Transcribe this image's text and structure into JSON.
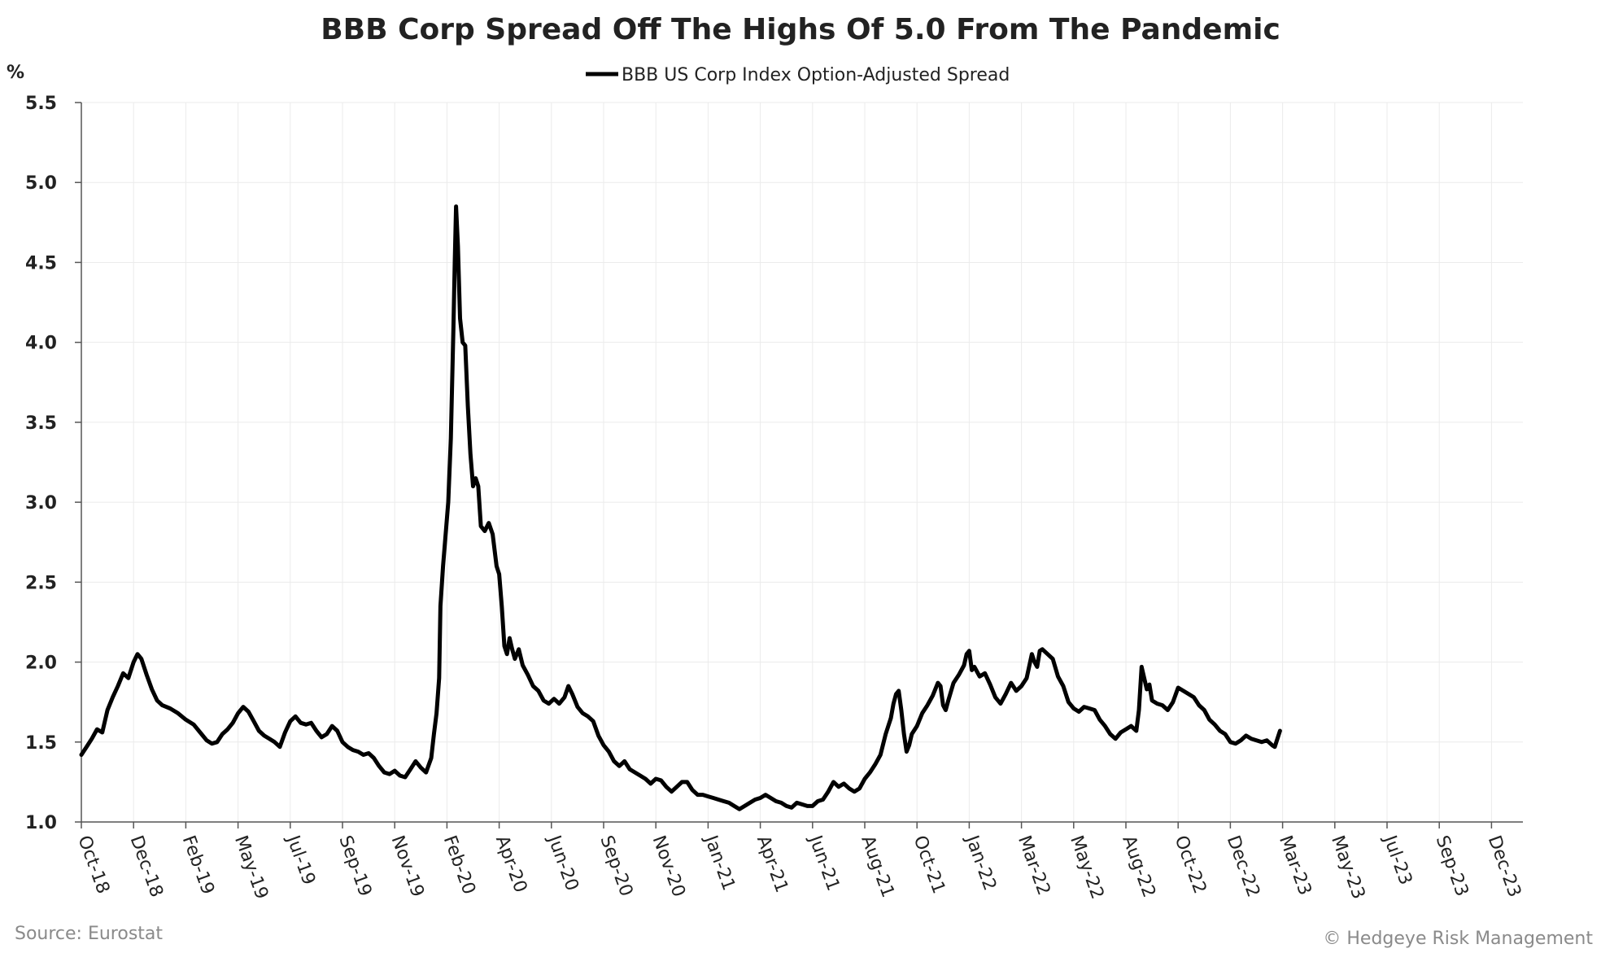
{
  "chart_data": {
    "type": "line",
    "title": "BBB Corp Spread Off The Highs Of 5.0 From The Pandemic",
    "ylabel": "%",
    "xlabel": "",
    "ylim": [
      1.0,
      5.5
    ],
    "yticks": [
      "1.0",
      "1.5",
      "2.0",
      "2.5",
      "3.0",
      "3.5",
      "4.0",
      "4.5",
      "5.0",
      "5.5"
    ],
    "ytick_values": [
      1.0,
      1.5,
      2.0,
      2.5,
      3.0,
      3.5,
      4.0,
      4.5,
      5.0,
      5.5
    ],
    "xticks": [
      "Oct-18",
      "Dec-18",
      "Feb-19",
      "May-19",
      "Jul-19",
      "Sep-19",
      "Nov-19",
      "Feb-20",
      "Apr-20",
      "Jun-20",
      "Sep-20",
      "Nov-20",
      "Jan-21",
      "Apr-21",
      "Jun-21",
      "Aug-21",
      "Oct-21",
      "Jan-22",
      "Mar-22",
      "May-22",
      "Aug-22",
      "Oct-22",
      "Dec-22",
      "Mar-23",
      "May-23",
      "Jul-23",
      "Sep-23",
      "Dec-23"
    ],
    "legend": {
      "position": "top-center",
      "entries": [
        "BBB US Corp Index Option-Adjusted Spread"
      ]
    },
    "grid": true,
    "series": [
      {
        "name": "BBB US Corp Index Option-Adjusted Spread",
        "color": "#000000",
        "points": [
          [
            0.0,
            1.42
          ],
          [
            0.2,
            1.47
          ],
          [
            0.4,
            1.52
          ],
          [
            0.6,
            1.58
          ],
          [
            0.8,
            1.56
          ],
          [
            1.0,
            1.7
          ],
          [
            1.2,
            1.78
          ],
          [
            1.4,
            1.85
          ],
          [
            1.6,
            1.93
          ],
          [
            1.8,
            1.9
          ],
          [
            2.0,
            2.0
          ],
          [
            2.15,
            2.05
          ],
          [
            2.3,
            2.02
          ],
          [
            2.5,
            1.92
          ],
          [
            2.7,
            1.83
          ],
          [
            2.9,
            1.76
          ],
          [
            3.1,
            1.73
          ],
          [
            3.4,
            1.71
          ],
          [
            3.7,
            1.68
          ],
          [
            4.0,
            1.64
          ],
          [
            4.3,
            1.61
          ],
          [
            4.6,
            1.55
          ],
          [
            4.8,
            1.51
          ],
          [
            5.0,
            1.49
          ],
          [
            5.2,
            1.5
          ],
          [
            5.4,
            1.55
          ],
          [
            5.6,
            1.58
          ],
          [
            5.8,
            1.62
          ],
          [
            6.0,
            1.68
          ],
          [
            6.2,
            1.72
          ],
          [
            6.4,
            1.69
          ],
          [
            6.6,
            1.63
          ],
          [
            6.8,
            1.57
          ],
          [
            7.0,
            1.54
          ],
          [
            7.2,
            1.52
          ],
          [
            7.4,
            1.5
          ],
          [
            7.6,
            1.47
          ],
          [
            7.8,
            1.56
          ],
          [
            8.0,
            1.63
          ],
          [
            8.2,
            1.66
          ],
          [
            8.4,
            1.62
          ],
          [
            8.6,
            1.61
          ],
          [
            8.8,
            1.62
          ],
          [
            9.0,
            1.57
          ],
          [
            9.2,
            1.53
          ],
          [
            9.4,
            1.55
          ],
          [
            9.6,
            1.6
          ],
          [
            9.8,
            1.57
          ],
          [
            10.0,
            1.5
          ],
          [
            10.2,
            1.47
          ],
          [
            10.4,
            1.45
          ],
          [
            10.6,
            1.44
          ],
          [
            10.8,
            1.42
          ],
          [
            11.0,
            1.43
          ],
          [
            11.2,
            1.4
          ],
          [
            11.4,
            1.35
          ],
          [
            11.6,
            1.31
          ],
          [
            11.8,
            1.3
          ],
          [
            12.0,
            1.32
          ],
          [
            12.2,
            1.29
          ],
          [
            12.4,
            1.28
          ],
          [
            12.6,
            1.33
          ],
          [
            12.8,
            1.38
          ],
          [
            13.0,
            1.34
          ],
          [
            13.2,
            1.31
          ],
          [
            13.4,
            1.4
          ],
          [
            13.5,
            1.55
          ],
          [
            13.6,
            1.68
          ],
          [
            13.7,
            1.9
          ],
          [
            13.75,
            2.35
          ],
          [
            13.85,
            2.6
          ],
          [
            13.95,
            2.8
          ],
          [
            14.05,
            3.0
          ],
          [
            14.15,
            3.4
          ],
          [
            14.25,
            4.1
          ],
          [
            14.3,
            4.5
          ],
          [
            14.35,
            4.85
          ],
          [
            14.42,
            4.6
          ],
          [
            14.5,
            4.15
          ],
          [
            14.6,
            4.0
          ],
          [
            14.7,
            3.98
          ],
          [
            14.8,
            3.6
          ],
          [
            14.9,
            3.3
          ],
          [
            15.0,
            3.1
          ],
          [
            15.1,
            3.15
          ],
          [
            15.2,
            3.1
          ],
          [
            15.3,
            2.85
          ],
          [
            15.45,
            2.82
          ],
          [
            15.6,
            2.87
          ],
          [
            15.75,
            2.8
          ],
          [
            15.9,
            2.6
          ],
          [
            16.0,
            2.55
          ],
          [
            16.1,
            2.35
          ],
          [
            16.2,
            2.1
          ],
          [
            16.3,
            2.05
          ],
          [
            16.4,
            2.15
          ],
          [
            16.5,
            2.08
          ],
          [
            16.6,
            2.02
          ],
          [
            16.75,
            2.08
          ],
          [
            16.9,
            1.98
          ],
          [
            17.1,
            1.92
          ],
          [
            17.3,
            1.85
          ],
          [
            17.5,
            1.82
          ],
          [
            17.7,
            1.76
          ],
          [
            17.9,
            1.74
          ],
          [
            18.1,
            1.77
          ],
          [
            18.3,
            1.74
          ],
          [
            18.5,
            1.78
          ],
          [
            18.65,
            1.85
          ],
          [
            18.8,
            1.8
          ],
          [
            19.0,
            1.72
          ],
          [
            19.2,
            1.68
          ],
          [
            19.4,
            1.66
          ],
          [
            19.6,
            1.63
          ],
          [
            19.8,
            1.54
          ],
          [
            20.0,
            1.48
          ],
          [
            20.2,
            1.44
          ],
          [
            20.4,
            1.38
          ],
          [
            20.6,
            1.35
          ],
          [
            20.8,
            1.38
          ],
          [
            21.0,
            1.33
          ],
          [
            21.2,
            1.31
          ],
          [
            21.4,
            1.29
          ],
          [
            21.6,
            1.27
          ],
          [
            21.8,
            1.24
          ],
          [
            22.0,
            1.27
          ],
          [
            22.2,
            1.26
          ],
          [
            22.4,
            1.22
          ],
          [
            22.6,
            1.19
          ],
          [
            22.8,
            1.22
          ],
          [
            23.0,
            1.25
          ],
          [
            23.2,
            1.25
          ],
          [
            23.4,
            1.2
          ],
          [
            23.6,
            1.17
          ],
          [
            23.8,
            1.17
          ],
          [
            24.0,
            1.16
          ],
          [
            24.2,
            1.15
          ],
          [
            24.4,
            1.14
          ],
          [
            24.6,
            1.13
          ],
          [
            24.8,
            1.12
          ],
          [
            25.0,
            1.1
          ],
          [
            25.2,
            1.08
          ],
          [
            25.4,
            1.1
          ],
          [
            25.6,
            1.12
          ],
          [
            25.8,
            1.14
          ],
          [
            26.0,
            1.15
          ],
          [
            26.2,
            1.17
          ],
          [
            26.4,
            1.15
          ],
          [
            26.6,
            1.13
          ],
          [
            26.8,
            1.12
          ],
          [
            27.0,
            1.1
          ],
          [
            27.2,
            1.09
          ],
          [
            27.4,
            1.12
          ],
          [
            27.6,
            1.11
          ],
          [
            27.8,
            1.1
          ],
          [
            28.0,
            1.1
          ],
          [
            28.2,
            1.13
          ],
          [
            28.4,
            1.14
          ],
          [
            28.6,
            1.19
          ],
          [
            28.8,
            1.25
          ],
          [
            29.0,
            1.22
          ],
          [
            29.2,
            1.24
          ],
          [
            29.4,
            1.21
          ],
          [
            29.6,
            1.19
          ],
          [
            29.8,
            1.21
          ],
          [
            30.0,
            1.27
          ],
          [
            30.2,
            1.31
          ],
          [
            30.4,
            1.36
          ],
          [
            30.6,
            1.42
          ],
          [
            30.8,
            1.55
          ],
          [
            31.0,
            1.65
          ],
          [
            31.1,
            1.74
          ],
          [
            31.2,
            1.8
          ],
          [
            31.3,
            1.82
          ],
          [
            31.4,
            1.7
          ],
          [
            31.5,
            1.55
          ],
          [
            31.6,
            1.44
          ],
          [
            31.7,
            1.48
          ],
          [
            31.8,
            1.55
          ],
          [
            32.0,
            1.6
          ],
          [
            32.2,
            1.68
          ],
          [
            32.4,
            1.73
          ],
          [
            32.6,
            1.79
          ],
          [
            32.8,
            1.87
          ],
          [
            32.9,
            1.85
          ],
          [
            33.0,
            1.73
          ],
          [
            33.1,
            1.7
          ],
          [
            33.2,
            1.76
          ],
          [
            33.4,
            1.87
          ],
          [
            33.6,
            1.92
          ],
          [
            33.8,
            1.98
          ],
          [
            33.9,
            2.05
          ],
          [
            34.0,
            2.07
          ],
          [
            34.1,
            1.95
          ],
          [
            34.2,
            1.97
          ],
          [
            34.4,
            1.91
          ],
          [
            34.6,
            1.93
          ],
          [
            34.8,
            1.86
          ],
          [
            35.0,
            1.78
          ],
          [
            35.2,
            1.74
          ],
          [
            35.4,
            1.8
          ],
          [
            35.6,
            1.87
          ],
          [
            35.8,
            1.82
          ],
          [
            36.0,
            1.85
          ],
          [
            36.2,
            1.9
          ],
          [
            36.4,
            2.05
          ],
          [
            36.5,
            2.0
          ],
          [
            36.6,
            1.97
          ],
          [
            36.7,
            2.07
          ],
          [
            36.8,
            2.08
          ],
          [
            37.0,
            2.05
          ],
          [
            37.2,
            2.02
          ],
          [
            37.4,
            1.91
          ],
          [
            37.6,
            1.85
          ],
          [
            37.8,
            1.75
          ],
          [
            38.0,
            1.71
          ],
          [
            38.2,
            1.69
          ],
          [
            38.4,
            1.72
          ],
          [
            38.6,
            1.71
          ],
          [
            38.8,
            1.7
          ],
          [
            39.0,
            1.64
          ],
          [
            39.2,
            1.6
          ],
          [
            39.4,
            1.55
          ],
          [
            39.6,
            1.52
          ],
          [
            39.8,
            1.56
          ],
          [
            40.0,
            1.58
          ],
          [
            40.2,
            1.6
          ],
          [
            40.4,
            1.57
          ],
          [
            40.5,
            1.7
          ],
          [
            40.6,
            1.97
          ],
          [
            40.7,
            1.9
          ],
          [
            40.8,
            1.83
          ],
          [
            40.9,
            1.86
          ],
          [
            41.0,
            1.76
          ],
          [
            41.2,
            1.74
          ],
          [
            41.4,
            1.73
          ],
          [
            41.6,
            1.7
          ],
          [
            41.8,
            1.75
          ],
          [
            42.0,
            1.84
          ],
          [
            42.2,
            1.82
          ],
          [
            42.4,
            1.8
          ],
          [
            42.6,
            1.78
          ],
          [
            42.8,
            1.73
          ],
          [
            43.0,
            1.7
          ],
          [
            43.2,
            1.64
          ],
          [
            43.4,
            1.61
          ],
          [
            43.6,
            1.57
          ],
          [
            43.8,
            1.55
          ],
          [
            44.0,
            1.5
          ],
          [
            44.2,
            1.49
          ],
          [
            44.4,
            1.51
          ],
          [
            44.6,
            1.54
          ],
          [
            44.8,
            1.52
          ],
          [
            45.0,
            1.51
          ],
          [
            45.2,
            1.5
          ],
          [
            45.4,
            1.51
          ],
          [
            45.6,
            1.48
          ],
          [
            45.7,
            1.47
          ],
          [
            45.8,
            1.52
          ],
          [
            45.9,
            1.57
          ]
        ]
      }
    ]
  },
  "source": "Source: Eurostat",
  "copyright": "© Hedgeye Risk Management"
}
